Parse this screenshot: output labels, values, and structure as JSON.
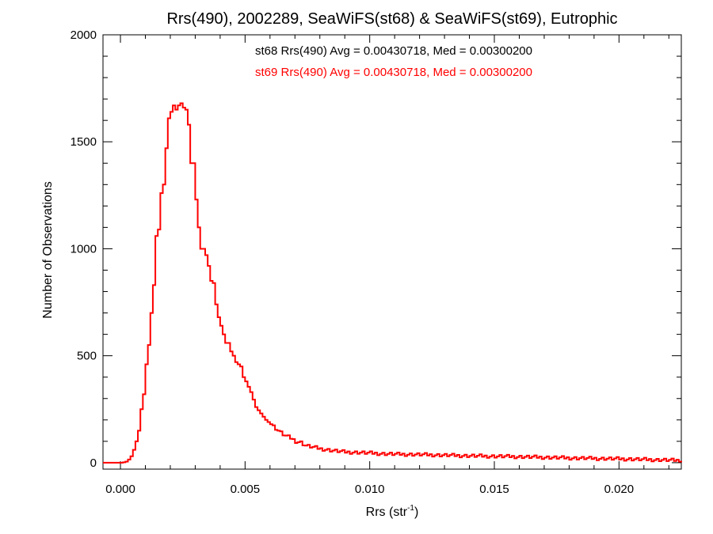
{
  "chart_data": {
    "type": "histogram",
    "title": "Rrs(490), 2002289, SeaWiFS(st68) & SeaWiFS(st69), Eutrophic",
    "xlabel": "Rrs (str",
    "xlabel_sup": "-1",
    "xlabel_suffix": ")",
    "ylabel": "Number of Observations",
    "xlim": [
      -0.0007,
      0.0225
    ],
    "ylim": [
      -30,
      2000
    ],
    "x_ticks": [
      {
        "value": 0.0,
        "label": "0.000"
      },
      {
        "value": 0.005,
        "label": "0.005"
      },
      {
        "value": 0.01,
        "label": "0.010"
      },
      {
        "value": 0.015,
        "label": "0.015"
      },
      {
        "value": 0.02,
        "label": "0.020"
      }
    ],
    "y_ticks": [
      {
        "value": 0,
        "label": "0"
      },
      {
        "value": 500,
        "label": "500"
      },
      {
        "value": 1000,
        "label": "1000"
      },
      {
        "value": 1500,
        "label": "1500"
      },
      {
        "value": 2000,
        "label": "2000"
      }
    ],
    "x_minor_step": 0.001,
    "y_minor_step": 100,
    "annotations": [
      {
        "text": "st68 Rrs(490) Avg = 0.00430718, Med = 0.00300200",
        "color": "#000000"
      },
      {
        "text": "st69 Rrs(490) Avg = 0.00430718, Med = 0.00300200",
        "color": "#ff0000"
      }
    ],
    "series_color": "#ff0000",
    "bin_width": 0.0001,
    "series": [
      {
        "x": [
          -0.0007,
          -0.0006,
          -0.0005,
          -0.0004,
          -0.0003,
          -0.0002,
          -0.0001,
          0.0,
          0.0001,
          0.0002,
          0.0003,
          0.0004,
          0.0005,
          0.0006,
          0.0007,
          0.0008,
          0.0009,
          0.001,
          0.0011,
          0.0012,
          0.0013,
          0.0014,
          0.0015,
          0.0016,
          0.0017,
          0.0018,
          0.0019,
          0.002,
          0.0021,
          0.0022,
          0.0023,
          0.0024,
          0.0025,
          0.0026,
          0.0027,
          0.0028,
          0.0029,
          0.003,
          0.0031,
          0.0032,
          0.0033,
          0.0034,
          0.0035,
          0.0036,
          0.0037,
          0.0038,
          0.0039,
          0.004,
          0.0041,
          0.0042,
          0.0043,
          0.0044,
          0.0045,
          0.0046,
          0.0047,
          0.0048,
          0.0049,
          0.005,
          0.0052,
          0.0054,
          0.0056,
          0.0058,
          0.006,
          0.0062,
          0.0064,
          0.0066,
          0.0068,
          0.007,
          0.0072,
          0.0074,
          0.0076,
          0.0078,
          0.008,
          0.0083,
          0.0086,
          0.009,
          0.0095,
          0.01,
          0.0105,
          0.011,
          0.012,
          0.013,
          0.014,
          0.015,
          0.016,
          0.017,
          0.018,
          0.019,
          0.02,
          0.021,
          0.022,
          0.0225
        ],
        "y": [
          0,
          0,
          0,
          0,
          0,
          0,
          0,
          0,
          2,
          5,
          15,
          30,
          60,
          100,
          150,
          250,
          320,
          460,
          550,
          700,
          830,
          1060,
          1090,
          1260,
          1300,
          1470,
          1610,
          1640,
          1670,
          1650,
          1670,
          1680,
          1660,
          1650,
          1580,
          1400,
          1400,
          1230,
          1100,
          1000,
          1000,
          970,
          920,
          850,
          840,
          740,
          680,
          640,
          600,
          560,
          560,
          520,
          500,
          470,
          460,
          450,
          400,
          380,
          330,
          260,
          230,
          200,
          180,
          160,
          140,
          125,
          115,
          100,
          95,
          80,
          75,
          70,
          65,
          60,
          55,
          50,
          48,
          45,
          42,
          40,
          38,
          35,
          32,
          30,
          28,
          25,
          22,
          20,
          18,
          15,
          12,
          10
        ]
      }
    ]
  }
}
